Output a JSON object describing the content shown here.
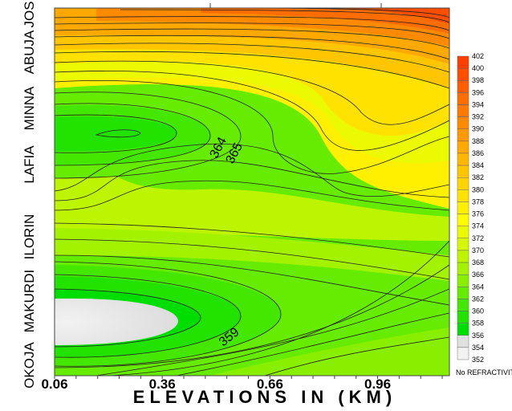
{
  "chart_data": {
    "type": "contour",
    "xlabel": "ELEVATIONS IN (KM)",
    "x_ticks": [
      "0.06",
      "0.36",
      "0.66",
      "0.96"
    ],
    "y_categories": [
      "OKOJA",
      "MAKURDI",
      "ILORIN",
      "LAFIA",
      "MINNA",
      "ABUJA",
      "JOS"
    ],
    "colorbar": {
      "title": "No REFRACTIVITY",
      "min": 352,
      "max": 402,
      "step": 2,
      "labels": [
        "402",
        "400",
        "398",
        "396",
        "394",
        "392",
        "390",
        "388",
        "386",
        "384",
        "382",
        "380",
        "378",
        "376",
        "374",
        "372",
        "370",
        "368",
        "366",
        "364",
        "362",
        "360",
        "358",
        "356",
        "354",
        "352"
      ]
    },
    "contour_labels": [
      {
        "text": "364",
        "x": 0.5,
        "y": "MINNA"
      },
      {
        "text": "365",
        "x": 0.5,
        "y": "MINNA"
      },
      {
        "text": "359",
        "x": 0.5,
        "y": "MAKURDI"
      }
    ],
    "levels": [
      {
        "max": 356,
        "color": "#e6e6e6"
      },
      {
        "max": 358,
        "color": "#00dd00"
      },
      {
        "max": 360,
        "color": "#22e200"
      },
      {
        "max": 362,
        "color": "#44e700"
      },
      {
        "max": 364,
        "color": "#66ec00"
      },
      {
        "max": 366,
        "color": "#88ef00"
      },
      {
        "max": 368,
        "color": "#a3f200"
      },
      {
        "max": 370,
        "color": "#bdf500"
      },
      {
        "max": 372,
        "color": "#d5f700"
      },
      {
        "max": 374,
        "color": "#ecfa00"
      },
      {
        "max": 376,
        "color": "#fffd00"
      },
      {
        "max": 378,
        "color": "#fff000"
      },
      {
        "max": 380,
        "color": "#ffe200"
      },
      {
        "max": 382,
        "color": "#ffd400"
      },
      {
        "max": 384,
        "color": "#ffc600"
      },
      {
        "max": 386,
        "color": "#ffb700"
      },
      {
        "max": 388,
        "color": "#ffa800"
      },
      {
        "max": 390,
        "color": "#ff9900"
      },
      {
        "max": 392,
        "color": "#ff8a00"
      },
      {
        "max": 394,
        "color": "#ff7b00"
      },
      {
        "max": 396,
        "color": "#ff6c00"
      },
      {
        "max": 398,
        "color": "#ff5d00"
      },
      {
        "max": 400,
        "color": "#ff4e00"
      },
      {
        "max": 402,
        "color": "#ff3f00"
      }
    ]
  }
}
